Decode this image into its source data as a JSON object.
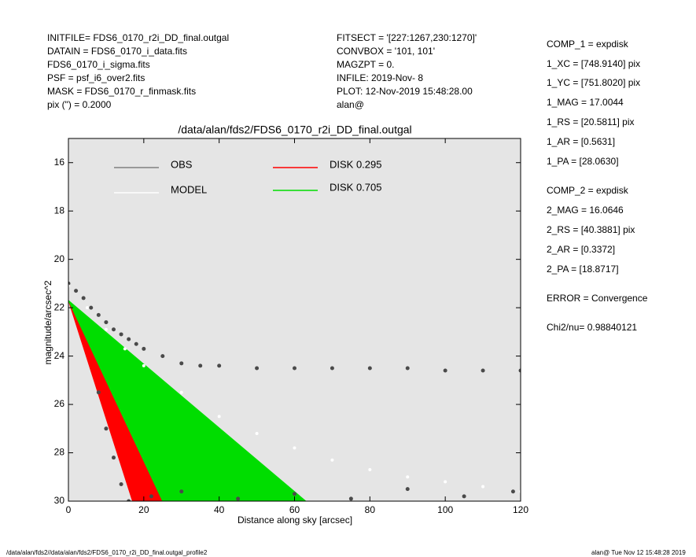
{
  "header": {
    "left": [
      "INITFILE= FDS6_0170_r2i_DD_final.outgal",
      "DATAIN  = FDS6_0170_i_data.fits",
      "FDS6_0170_i_sigma.fits",
      "PSF     = psf_i6_over2.fits",
      "MASK    = FDS6_0170_r_finmask.fits",
      "pix (\") =  0.2000"
    ],
    "middle": [
      "FITSECT = '[227:1267,230:1270]'",
      "CONVBOX = '101, 101'",
      "MAGZPT  =              0.",
      "INFILE: 2019-Nov- 8",
      "PLOT: 12-Nov-2019 15:48:28.00",
      "alan@"
    ],
    "right": [
      "COMP_1  = expdisk",
      "1_XC    = [748.9140] pix",
      "1_YC    = [751.8020] pix",
      "1_MAG   = 17.0044",
      "1_RS    = [20.5811] pix",
      "1_AR    = [0.5631]",
      "1_PA    = [28.0630]",
      "COMP_2  = expdisk",
      "2_MAG   = 16.0646",
      "2_RS    = [40.3881] pix",
      "2_AR    = [0.3372]",
      "2_PA    = [18.8717]",
      "ERROR   = Convergence",
      "Chi2/nu=     0.98840121"
    ]
  },
  "footer": {
    "left": "/data/alan/fds2//data/alan/fds2/FDS6_0170_r2i_DD_final.outgal_profile2",
    "right": "alan@  Tue Nov 12 15:48:28 2019"
  },
  "chart_data": {
    "type": "scatter",
    "title": "/data/alan/fds2/FDS6_0170_r2i_DD_final.outgal",
    "x_label": "Distance along sky [arcsec]",
    "y_label": "magnitude/arcsec^2",
    "xlim": [
      0,
      120
    ],
    "xticks": [
      0,
      20,
      40,
      60,
      80,
      100,
      120
    ],
    "ylim": [
      30,
      15
    ],
    "yticks": [
      16,
      18,
      20,
      22,
      24,
      26,
      28,
      30
    ],
    "background": "#e5e5e5",
    "series": [
      {
        "name": "OBS",
        "color": "#808080",
        "point_color": "#4a4a4a",
        "x": [
          0,
          2,
          4,
          6,
          8,
          10,
          12,
          14,
          16,
          18,
          20,
          25,
          30,
          35,
          40,
          50,
          60,
          70,
          80,
          90,
          100,
          110,
          120,
          8,
          10,
          12,
          14,
          16,
          22,
          30,
          45,
          60,
          75,
          90,
          105,
          118
        ],
        "y": [
          21.0,
          21.3,
          21.6,
          22.0,
          22.3,
          22.6,
          22.9,
          23.1,
          23.3,
          23.5,
          23.7,
          24.0,
          24.3,
          24.4,
          24.4,
          24.5,
          24.5,
          24.5,
          24.5,
          24.5,
          24.6,
          24.6,
          24.6,
          25.5,
          27.0,
          28.2,
          29.3,
          30.0,
          29.8,
          29.6,
          29.9,
          29.7,
          29.9,
          29.5,
          29.8,
          29.6
        ]
      },
      {
        "name": "MODEL",
        "color": "#ffffff",
        "point_color": "#ffffff",
        "x": [
          0,
          5,
          10,
          15,
          20,
          30,
          40,
          50,
          60,
          70,
          80,
          90,
          100,
          110,
          120
        ],
        "y": [
          21.1,
          22.0,
          22.9,
          23.7,
          24.4,
          25.5,
          26.5,
          27.2,
          27.8,
          28.3,
          28.7,
          29.0,
          29.2,
          29.4,
          29.6
        ]
      },
      {
        "name": "DISK  0.295",
        "color": "#ff0000",
        "x": [
          0,
          17,
          32,
          0
        ],
        "y": [
          21.7,
          30,
          30,
          21.7
        ]
      },
      {
        "name": "DISK  0.705",
        "color": "#00dd00",
        "x": [
          0,
          25,
          63,
          0
        ],
        "y": [
          21.7,
          30,
          30,
          21.7
        ]
      }
    ]
  }
}
